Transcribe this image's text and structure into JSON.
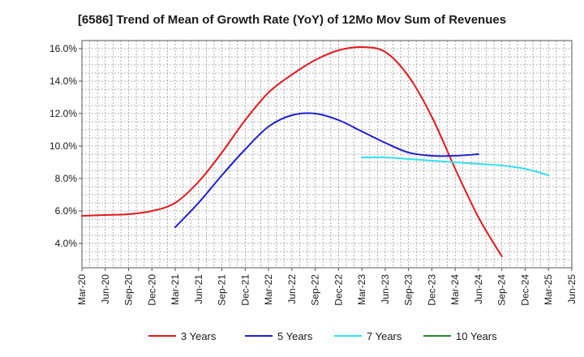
{
  "chart_data": {
    "type": "line",
    "title": "[6586]  Trend of Mean of Growth Rate (YoY) of 12Mo Mov Sum of Revenues",
    "xlabel": "",
    "ylabel": "",
    "ylim": [
      2.5,
      16.5
    ],
    "y_ticks": [
      4.0,
      6.0,
      8.0,
      10.0,
      12.0,
      14.0,
      16.0
    ],
    "y_tick_labels": [
      "4.0%",
      "6.0%",
      "8.0%",
      "10.0%",
      "12.0%",
      "14.0%",
      "16.0%"
    ],
    "x_labels": [
      "Mar-20",
      "Jun-20",
      "Sep-20",
      "Dec-20",
      "Mar-21",
      "Jun-21",
      "Sep-21",
      "Dec-21",
      "Mar-22",
      "Jun-22",
      "Sep-22",
      "Dec-22",
      "Mar-23",
      "Jun-23",
      "Sep-23",
      "Dec-23",
      "Mar-24",
      "Jun-24",
      "Sep-24",
      "Dec-24",
      "Mar-25",
      "Jun-25"
    ],
    "grid": true,
    "legend_position": "bottom",
    "series": [
      {
        "name": "3 Years",
        "color": "#e31a1c",
        "start_index": 0,
        "values": [
          5.7,
          5.75,
          5.8,
          6.0,
          6.5,
          7.8,
          9.6,
          11.6,
          13.3,
          14.4,
          15.3,
          15.9,
          16.1,
          15.8,
          14.3,
          11.8,
          8.6,
          5.6,
          3.2
        ]
      },
      {
        "name": "5 Years",
        "color": "#1f1fcf",
        "start_index": 4,
        "values": [
          5.0,
          6.5,
          8.2,
          9.8,
          11.2,
          11.9,
          12.0,
          11.6,
          10.9,
          10.2,
          9.6,
          9.4,
          9.4,
          9.5
        ]
      },
      {
        "name": "7 Years",
        "color": "#33e0f0",
        "start_index": 12,
        "values": [
          9.3,
          9.3,
          9.2,
          9.1,
          9.0,
          8.9,
          8.8,
          8.6,
          8.2
        ]
      },
      {
        "name": "10 Years",
        "color": "#2a8a2a",
        "start_index": 0,
        "values": []
      }
    ]
  }
}
